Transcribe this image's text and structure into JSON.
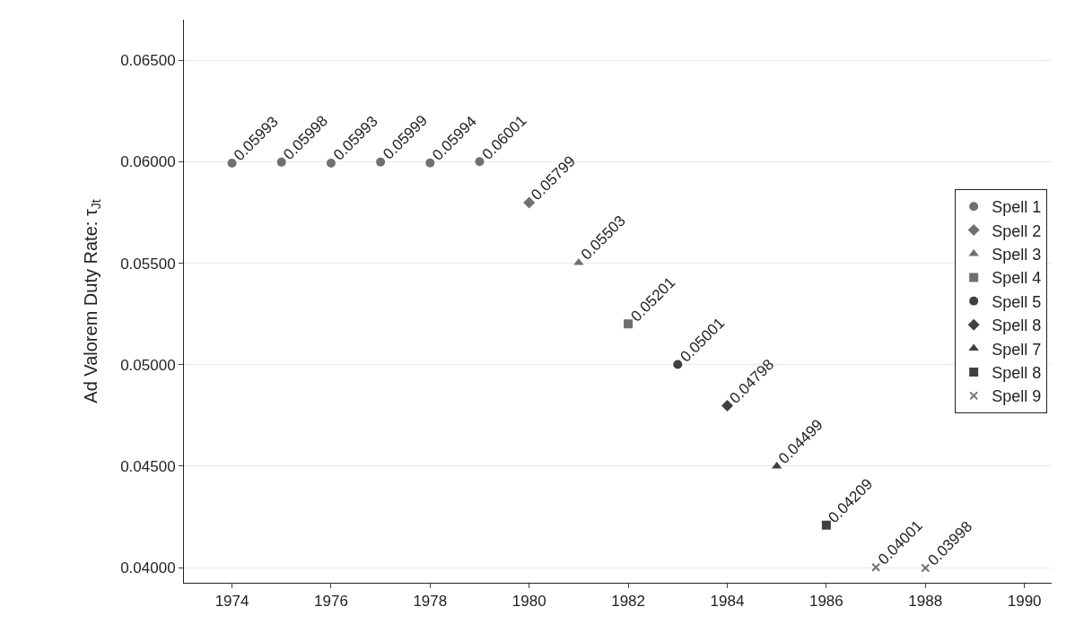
{
  "chart_data": {
    "type": "scatter",
    "ylabel": "Ad Valorem Duty Rate: τ$_{Jt}$",
    "series": [
      {
        "name": "Spell 1",
        "color": "#707070",
        "marker": "circle",
        "x": [
          1974,
          1975,
          1976,
          1977,
          1978,
          1979
        ],
        "values": [
          0.05993,
          0.05998,
          0.05993,
          0.05999,
          0.05994,
          0.06001
        ]
      },
      {
        "name": "Spell 2",
        "color": "#707070",
        "marker": "diamond",
        "x": [
          1980
        ],
        "values": [
          0.05799
        ]
      },
      {
        "name": "Spell 3",
        "color": "#707070",
        "marker": "triangle",
        "x": [
          1981
        ],
        "values": [
          0.05503
        ]
      },
      {
        "name": "Spell 4",
        "color": "#707070",
        "marker": "square",
        "x": [
          1982
        ],
        "values": [
          0.05201
        ]
      },
      {
        "name": "Spell 5",
        "color": "#404040",
        "marker": "circle",
        "x": [
          1983
        ],
        "values": [
          0.05001
        ]
      },
      {
        "name": "Spell 8",
        "color": "#404040",
        "marker": "diamond",
        "x": [
          1984
        ],
        "values": [
          0.04798
        ]
      },
      {
        "name": "Spell 7",
        "color": "#404040",
        "marker": "triangle",
        "x": [
          1985
        ],
        "values": [
          0.04499
        ]
      },
      {
        "name": "Spell 8",
        "color": "#404040",
        "marker": "square",
        "x": [
          1986
        ],
        "values": [
          0.04209
        ]
      },
      {
        "name": "Spell 9",
        "color": "#707070",
        "marker": "cross",
        "x": [
          1987,
          1988
        ],
        "values": [
          0.04001,
          0.03998
        ]
      }
    ],
    "data_labels": true,
    "xlim": [
      1973.03,
      1990.55
    ],
    "xticks": [
      1974,
      1976,
      1978,
      1980,
      1982,
      1984,
      1986,
      1988,
      1990
    ],
    "ylim": [
      0.03925,
      0.067
    ],
    "yticks": [
      {
        "value": 0.04,
        "label": "0.04000"
      },
      {
        "value": 0.045,
        "label": "0.04500"
      },
      {
        "value": 0.05,
        "label": "0.05000"
      },
      {
        "value": 0.055,
        "label": "0.05500"
      },
      {
        "value": 0.06,
        "label": "0.06000"
      },
      {
        "value": 0.065,
        "label": "0.06500"
      }
    ],
    "grid": "y",
    "legend": "right"
  }
}
